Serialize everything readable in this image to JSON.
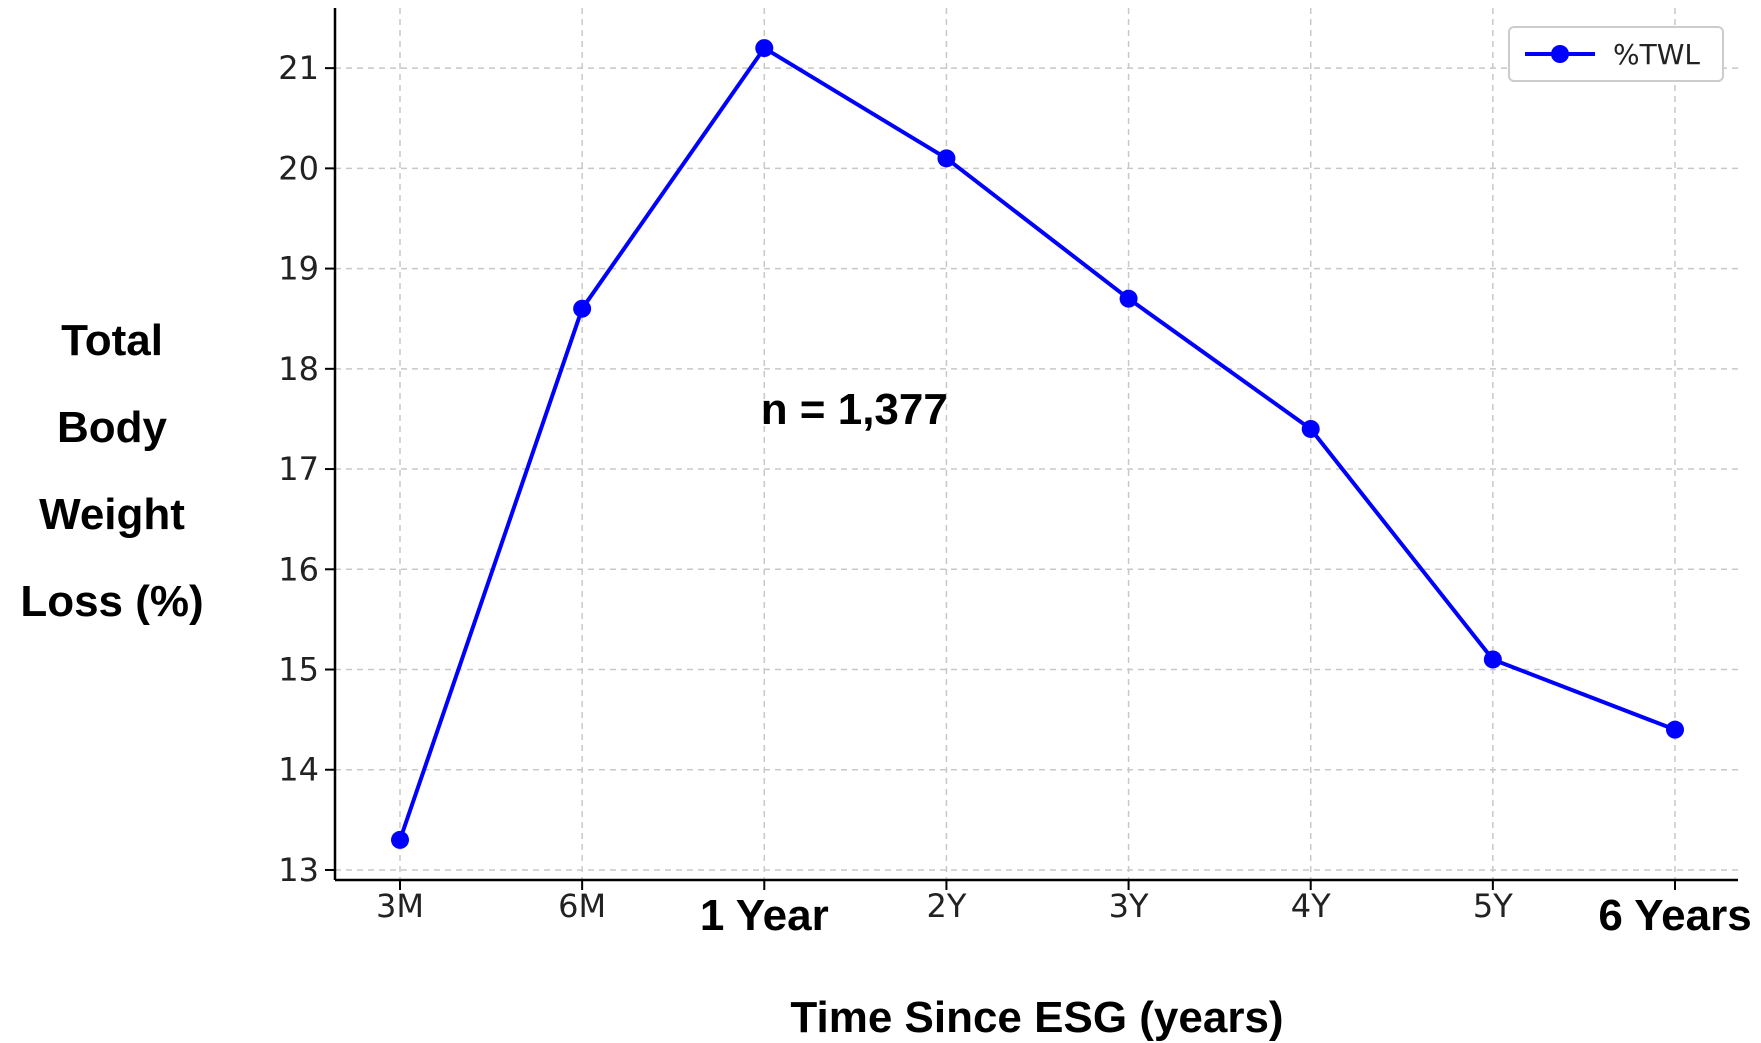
{
  "colors": {
    "series": "#0000ff",
    "grid": "#c8c8c8",
    "axis": "#000000",
    "legend_border": "#cccccc"
  },
  "chart_data": {
    "type": "line",
    "categories": [
      "3M",
      "6M",
      "1 Year",
      "2Y",
      "3Y",
      "4Y",
      "5Y",
      "6 Years"
    ],
    "emphasized_categories": [
      "1 Year",
      "6 Years"
    ],
    "series": [
      {
        "name": "%TWL",
        "values": [
          13.3,
          18.6,
          21.2,
          20.1,
          18.7,
          17.4,
          15.1,
          14.4
        ],
        "marker": "circle"
      }
    ],
    "title": "",
    "xlabel": "Time Since ESG (years)",
    "ylabel_lines": [
      "Total",
      "Body",
      "Weight",
      "Loss (%)"
    ],
    "ylim": [
      12.9,
      21.6
    ],
    "yticks": [
      13,
      14,
      15,
      16,
      17,
      18,
      19,
      20,
      21
    ],
    "grid": true,
    "legend_position": "top-right",
    "annotations": [
      {
        "text": "n = 1,377",
        "x_category": "1 Year",
        "y": 17.6
      }
    ]
  }
}
